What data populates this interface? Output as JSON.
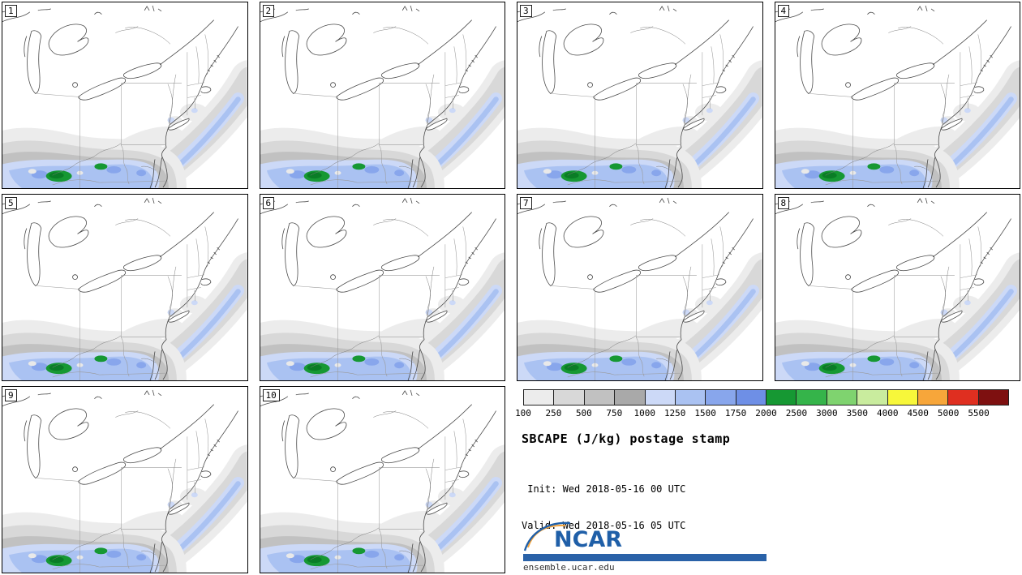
{
  "panels": [
    {
      "label": "1"
    },
    {
      "label": "2"
    },
    {
      "label": "3"
    },
    {
      "label": "4"
    },
    {
      "label": "5"
    },
    {
      "label": "6"
    },
    {
      "label": "7"
    },
    {
      "label": "8"
    },
    {
      "label": "9"
    },
    {
      "label": "10"
    }
  ],
  "legend": {
    "ticks": [
      "100",
      "250",
      "500",
      "750",
      "1000",
      "1250",
      "1500",
      "1750",
      "2000",
      "2500",
      "3000",
      "3500",
      "4000",
      "4500",
      "5000",
      "5500"
    ],
    "colors": [
      "#ececec",
      "#d8d8d8",
      "#c1c1c1",
      "#a9a9a9",
      "#ccd9f7",
      "#aac2f2",
      "#88a6ec",
      "#6e8fe6",
      "#169833",
      "#35b44a",
      "#7fd36f",
      "#c9ec9e",
      "#f7f73a",
      "#f7a63a",
      "#df2f20",
      "#7e1010"
    ],
    "title": "SBCAPE (J/kg) postage stamp",
    "init_line": " Init: Wed 2018-05-16 00 UTC",
    "valid_line": "Valid: Wed 2018-05-16 05 UTC",
    "units": "J/kg"
  },
  "branding": {
    "logo_text": "NCAR",
    "url": "ensemble.ucar.edu",
    "logo_blue": "#1f5fa8",
    "swoosh_orange": "#f2a33c",
    "bar_blue": "#2a62a8"
  },
  "map_colors": {
    "green_core": "#0a7d26",
    "hole": "#e9e9e9"
  }
}
